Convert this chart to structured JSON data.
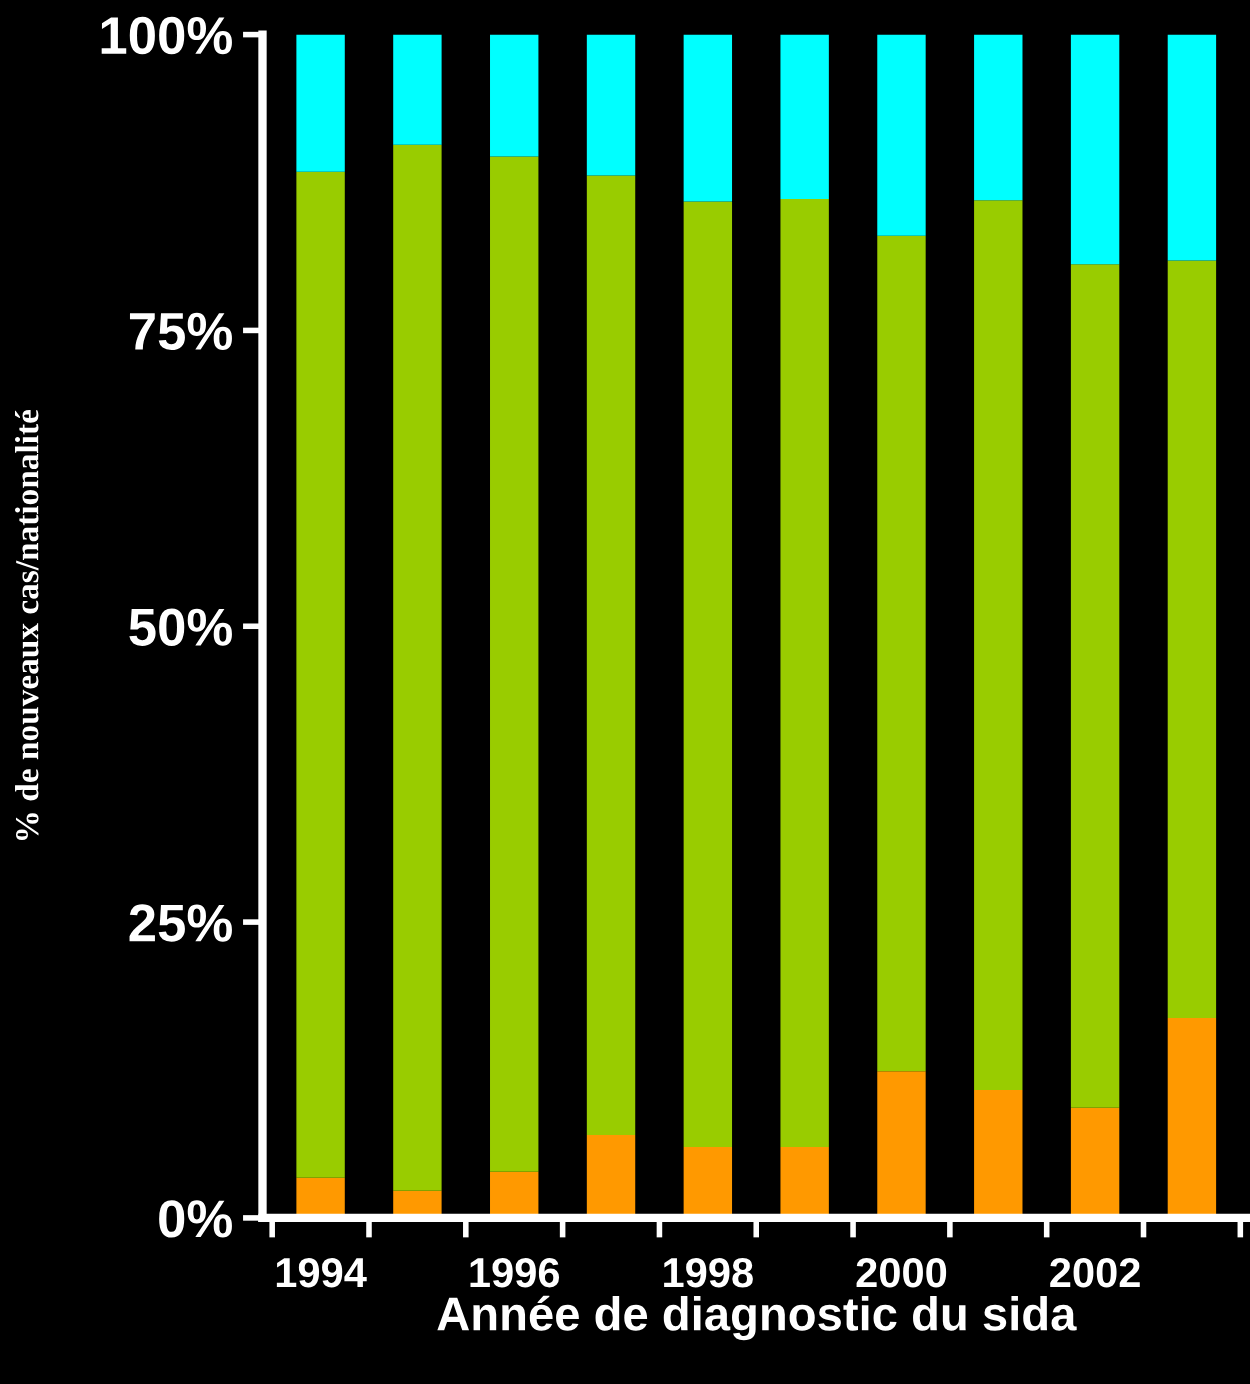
{
  "chart_data": {
    "type": "bar",
    "stacked": true,
    "xlabel": "Année de diagnostic du sida",
    "ylabel": "% de nouveaux cas/nationalité",
    "categories": [
      "1994",
      null,
      "1996",
      null,
      "1998",
      null,
      "2000",
      null,
      "2002",
      null
    ],
    "series": [
      {
        "color": "#ff9900",
        "values": [
          3.4,
          2.3,
          3.9,
          7.0,
          6.0,
          6.0,
          12.4,
          10.8,
          9.3,
          16.9
        ]
      },
      {
        "color": "#99cc00",
        "values": [
          85.0,
          88.4,
          85.8,
          81.1,
          79.9,
          80.1,
          70.6,
          75.2,
          71.3,
          64.0
        ]
      },
      {
        "color": "#00ffff",
        "values": [
          11.6,
          9.3,
          10.3,
          11.9,
          14.1,
          13.9,
          17.0,
          14.0,
          19.4,
          19.1
        ]
      }
    ],
    "ylim": [
      0,
      100
    ],
    "yticks": [
      {
        "value": 0,
        "label": "0%"
      },
      {
        "value": 25,
        "label": "25%"
      },
      {
        "value": 50,
        "label": "50%"
      },
      {
        "value": 75,
        "label": "75%"
      },
      {
        "value": 100,
        "label": "100%"
      }
    ],
    "grid": false,
    "legend": false
  }
}
